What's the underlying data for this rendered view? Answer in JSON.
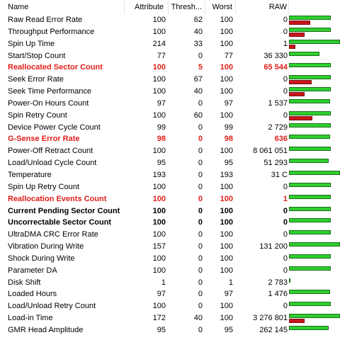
{
  "columns": {
    "name": "Name",
    "attribute": "Attribute",
    "threshold": "Thresh...",
    "worst": "Worst",
    "raw": "RAW"
  },
  "colors": {
    "good_bar": "#2dd02d",
    "bad_bar": "#c8161a",
    "warning_text": "#e0201a"
  },
  "rows": [
    {
      "name": "Raw Read Error Rate",
      "attr": "100",
      "thr": "62",
      "worst": "100",
      "raw": "0",
      "style": "",
      "good": 0.82,
      "bad": 0.42
    },
    {
      "name": "Throughput Performance",
      "attr": "100",
      "thr": "40",
      "worst": "100",
      "raw": "0",
      "style": "",
      "good": 0.82,
      "bad": 0.3
    },
    {
      "name": "Spin Up Time",
      "attr": "214",
      "thr": "33",
      "worst": "100",
      "raw": "1",
      "style": "",
      "good": 1.0,
      "bad": 0.12
    },
    {
      "name": "Start/Stop Count",
      "attr": "77",
      "thr": "0",
      "worst": "77",
      "raw": "36 330",
      "style": "",
      "good": 0.6,
      "bad": 0
    },
    {
      "name": "Reallocated Sector Count",
      "attr": "100",
      "thr": "5",
      "worst": "100",
      "raw": "65 544",
      "style": "warn",
      "good": 0.82,
      "bad": 0
    },
    {
      "name": "Seek Error Rate",
      "attr": "100",
      "thr": "67",
      "worst": "100",
      "raw": "0",
      "style": "",
      "good": 0.82,
      "bad": 0.45
    },
    {
      "name": "Seek Time Performance",
      "attr": "100",
      "thr": "40",
      "worst": "100",
      "raw": "0",
      "style": "",
      "good": 0.82,
      "bad": 0.3
    },
    {
      "name": "Power-On Hours Count",
      "attr": "97",
      "thr": "0",
      "worst": "97",
      "raw": "1 537",
      "style": "",
      "good": 0.8,
      "bad": 0
    },
    {
      "name": "Spin Retry Count",
      "attr": "100",
      "thr": "60",
      "worst": "100",
      "raw": "0",
      "style": "",
      "good": 0.82,
      "bad": 0.46
    },
    {
      "name": "Device Power Cycle Count",
      "attr": "99",
      "thr": "0",
      "worst": "99",
      "raw": "2 729",
      "style": "",
      "good": 0.82,
      "bad": 0
    },
    {
      "name": "G-Sense Error Rate",
      "attr": "98",
      "thr": "0",
      "worst": "98",
      "raw": "636",
      "style": "warn",
      "good": 0.8,
      "bad": 0
    },
    {
      "name": "Power-Off Retract Count",
      "attr": "100",
      "thr": "0",
      "worst": "100",
      "raw": "8 061 051",
      "style": "",
      "good": 0.82,
      "bad": 0
    },
    {
      "name": "Load/Unload Cycle Count",
      "attr": "95",
      "thr": "0",
      "worst": "95",
      "raw": "51 293",
      "style": "",
      "good": 0.78,
      "bad": 0
    },
    {
      "name": "Temperature",
      "attr": "193",
      "thr": "0",
      "worst": "193",
      "raw": "31 C",
      "style": "",
      "good": 1.0,
      "bad": 0
    },
    {
      "name": "Spin Up Retry Count",
      "attr": "100",
      "thr": "0",
      "worst": "100",
      "raw": "0",
      "style": "",
      "good": 0.82,
      "bad": 0
    },
    {
      "name": "Reallocation Events Count",
      "attr": "100",
      "thr": "0",
      "worst": "100",
      "raw": "1",
      "style": "warn",
      "good": 0.82,
      "bad": 0
    },
    {
      "name": "Current Pending Sector Count",
      "attr": "100",
      "thr": "0",
      "worst": "100",
      "raw": "0",
      "style": "bold",
      "good": 0.82,
      "bad": 0
    },
    {
      "name": "Uncorrectable Sector Count",
      "attr": "100",
      "thr": "0",
      "worst": "100",
      "raw": "0",
      "style": "bold",
      "good": 0.82,
      "bad": 0
    },
    {
      "name": "UltraDMA CRC Error Rate",
      "attr": "100",
      "thr": "0",
      "worst": "100",
      "raw": "0",
      "style": "",
      "good": 0.82,
      "bad": 0
    },
    {
      "name": "Vibration During Write",
      "attr": "157",
      "thr": "0",
      "worst": "100",
      "raw": "131 200",
      "style": "",
      "good": 1.0,
      "bad": 0
    },
    {
      "name": "Shock During Write",
      "attr": "100",
      "thr": "0",
      "worst": "100",
      "raw": "0",
      "style": "",
      "good": 0.82,
      "bad": 0
    },
    {
      "name": "Parameter DA",
      "attr": "100",
      "thr": "0",
      "worst": "100",
      "raw": "0",
      "style": "",
      "good": 0.82,
      "bad": 0
    },
    {
      "name": "Disk Shift",
      "attr": "1",
      "thr": "0",
      "worst": "1",
      "raw": "2 783",
      "style": "",
      "good": 0.02,
      "bad": 0
    },
    {
      "name": "Loaded Hours",
      "attr": "97",
      "thr": "0",
      "worst": "97",
      "raw": "1 476",
      "style": "",
      "good": 0.8,
      "bad": 0
    },
    {
      "name": "Load/Unload Retry Count",
      "attr": "100",
      "thr": "0",
      "worst": "100",
      "raw": "0",
      "style": "",
      "good": 0.82,
      "bad": 0
    },
    {
      "name": "Load-in Time",
      "attr": "172",
      "thr": "40",
      "worst": "100",
      "raw": "3 276 801",
      "style": "",
      "good": 1.0,
      "bad": 0.3
    },
    {
      "name": "GMR Head Amplitude",
      "attr": "95",
      "thr": "0",
      "worst": "95",
      "raw": "262 145",
      "style": "",
      "good": 0.78,
      "bad": 0
    }
  ]
}
